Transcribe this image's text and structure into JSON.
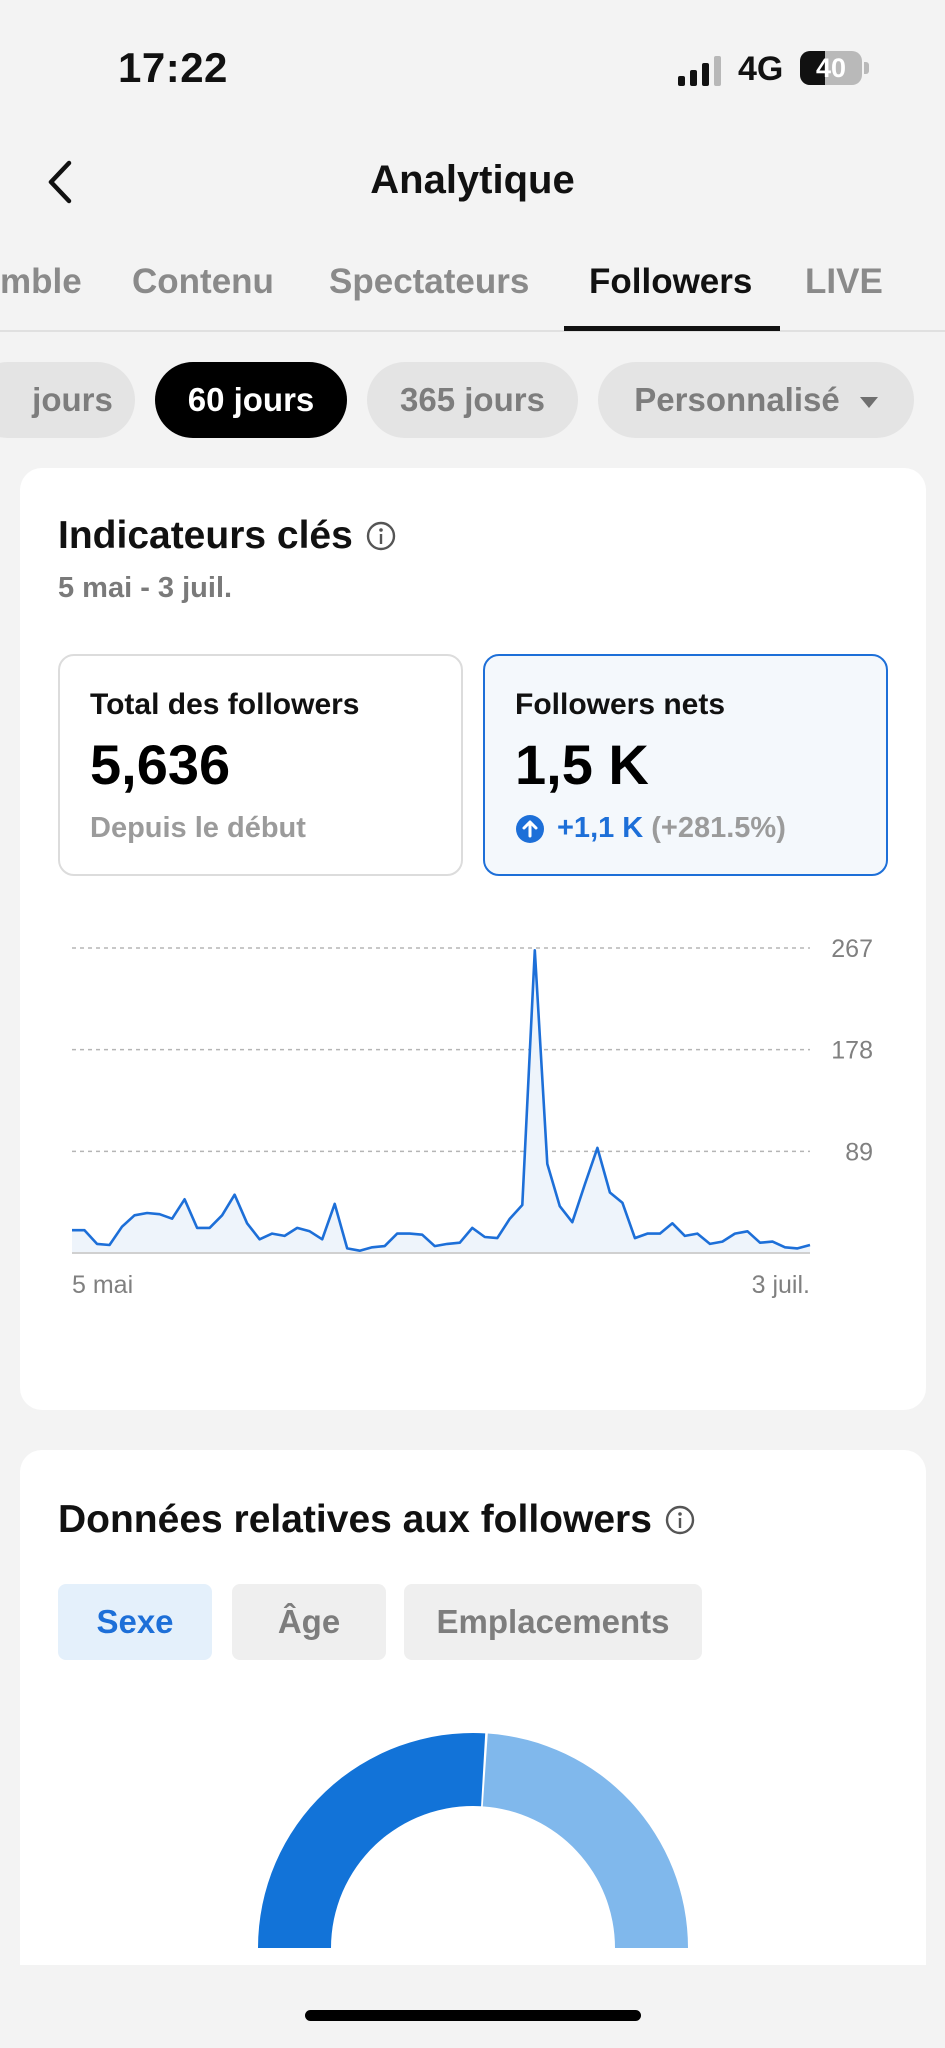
{
  "status_bar": {
    "time": "17:22",
    "network": "4G",
    "battery": "40"
  },
  "header": {
    "title": "Analytique"
  },
  "tabs": [
    {
      "label": "mble"
    },
    {
      "label": "Contenu"
    },
    {
      "label": "Spectateurs"
    },
    {
      "label": "Followers",
      "active": true
    },
    {
      "label": "LIVE"
    }
  ],
  "periods": [
    {
      "label": "jours"
    },
    {
      "label": "60 jours",
      "active": true
    },
    {
      "label": "365 jours"
    },
    {
      "label": "Personnalisé"
    }
  ],
  "key_metrics": {
    "title": "Indicateurs clés",
    "date_range": "5 mai - 3 juil.",
    "total": {
      "label": "Total des followers",
      "value": "5,636",
      "sub": "Depuis le début"
    },
    "net": {
      "label": "Followers nets",
      "value": "1,5 K",
      "delta": "+1,1 K",
      "delta_percent": "(+281.5%)"
    }
  },
  "chart_data": {
    "type": "area",
    "x_start_label": "5 mai",
    "x_end_label": "3 juil.",
    "ylim": [
      0,
      267
    ],
    "yticks": [
      89,
      178,
      267
    ],
    "grid": true,
    "series": [
      {
        "color": "#1d6fd8",
        "values": [
          20,
          20,
          8,
          7,
          23,
          33,
          35,
          34,
          30,
          47,
          22,
          22,
          33,
          51,
          26,
          12,
          17,
          15,
          22,
          19,
          12,
          43,
          4,
          2,
          5,
          6,
          17,
          17,
          16,
          6,
          8,
          9,
          22,
          14,
          13,
          30,
          42,
          265,
          78,
          41,
          27,
          60,
          92,
          53,
          44,
          13,
          17,
          17,
          26,
          15,
          17,
          8,
          10,
          17,
          19,
          9,
          10,
          5,
          4,
          7
        ]
      }
    ]
  },
  "followers_data": {
    "title": "Données relatives aux followers",
    "segments": [
      {
        "label": "Sexe",
        "active": true
      },
      {
        "label": "Âge"
      },
      {
        "label": "Emplacements"
      }
    ],
    "donut": {
      "values": [
        0.52,
        0.48
      ],
      "colors": [
        "#1273d8",
        "#80b8ec"
      ]
    }
  },
  "colors": {
    "accent": "#1d6fd8",
    "chart_fill": "#eef4fb"
  }
}
